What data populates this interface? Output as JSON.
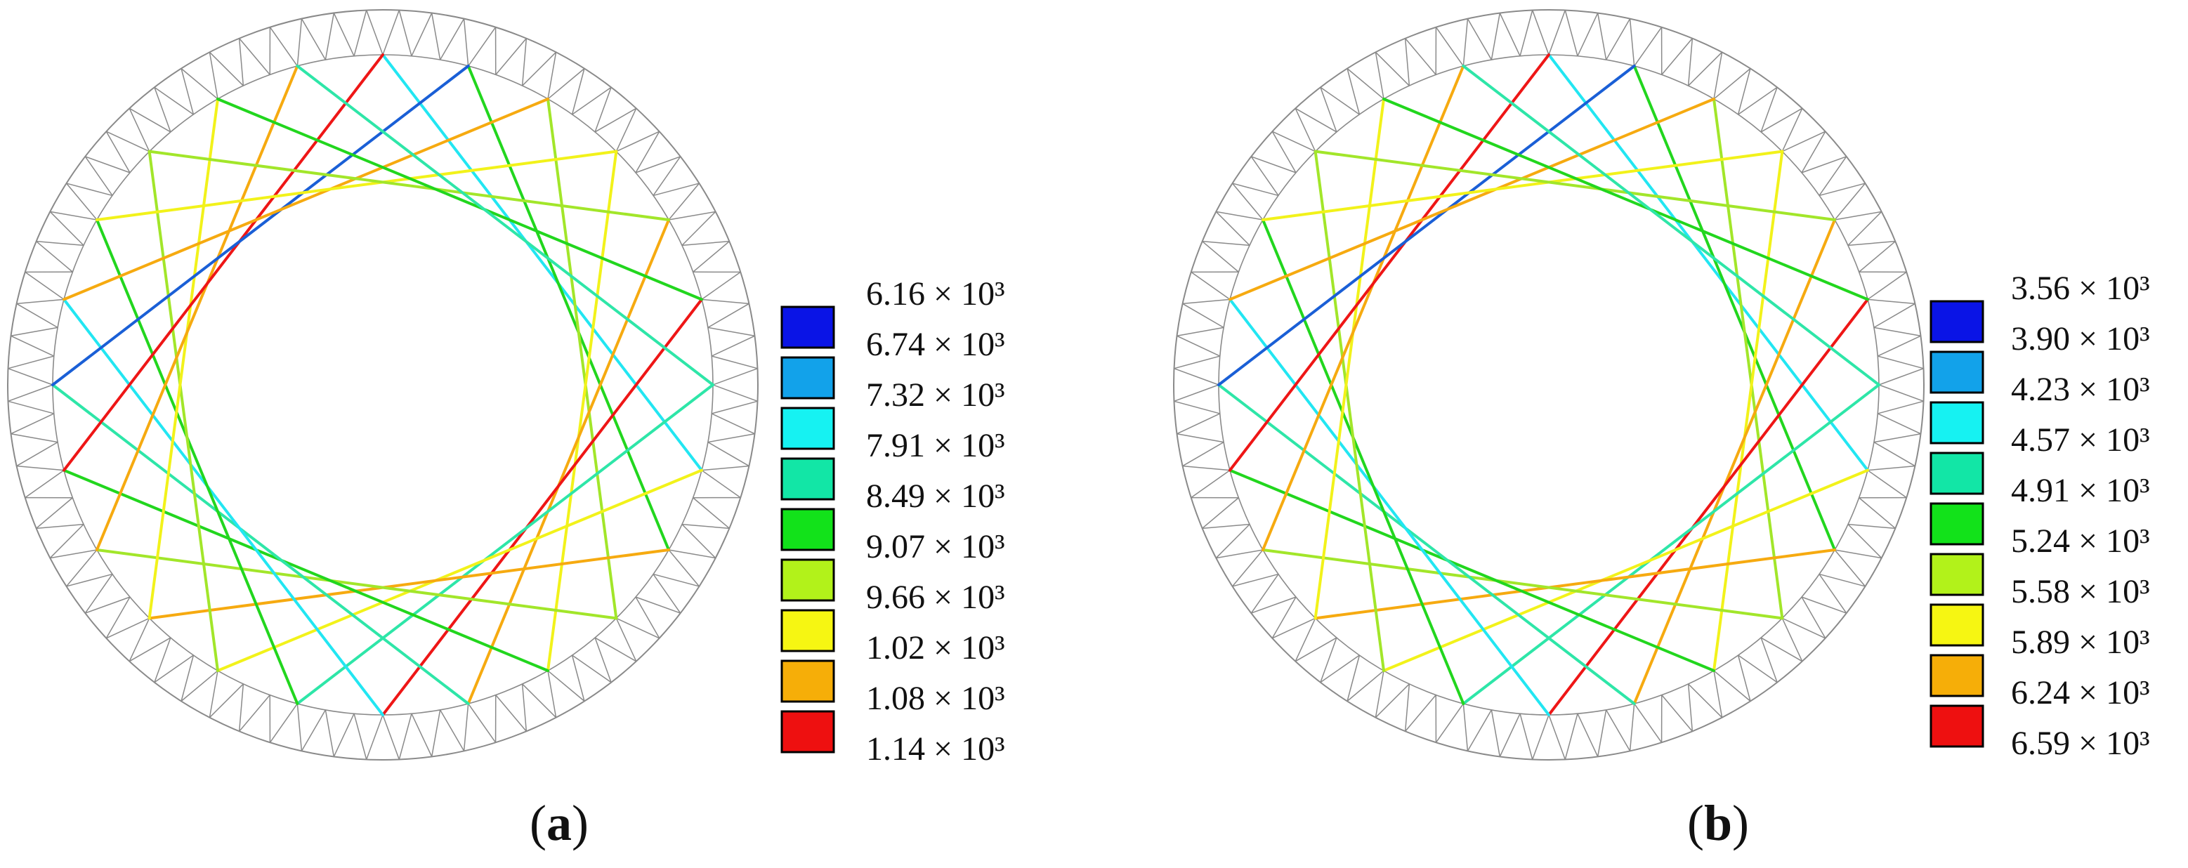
{
  "panels": [
    {
      "id": "a",
      "caption": {
        "open": "(",
        "letter": "a",
        "close": ")"
      },
      "legend": [
        {
          "label": "6.16 × 10³",
          "color": "#0a14e6"
        },
        {
          "label": "6.74 × 10³",
          "color": "#12a2ea"
        },
        {
          "label": "7.32 × 10³",
          "color": "#16f2f2"
        },
        {
          "label": "7.91 × 10³",
          "color": "#12e6a6"
        },
        {
          "label": "8.49 × 10³",
          "color": "#12e21a"
        },
        {
          "label": "9.07 × 10³",
          "color": "#b2f21a"
        },
        {
          "label": "9.66 × 10³",
          "color": "#f6f612"
        },
        {
          "label": "1.02 × 10³",
          "color": "#f6ae08"
        },
        {
          "label": "1.08 × 10³",
          "color": "#ee1010"
        },
        {
          "label": "1.14 × 10³",
          "color": null
        }
      ]
    },
    {
      "id": "b",
      "caption": {
        "open": "(",
        "letter": "b",
        "close": ")"
      },
      "legend": [
        {
          "label": "3.56 × 10³",
          "color": "#0a14e6"
        },
        {
          "label": "3.90 × 10³",
          "color": "#12a2ea"
        },
        {
          "label": "4.23 × 10³",
          "color": "#16f2f2"
        },
        {
          "label": "4.57 × 10³",
          "color": "#12e6a6"
        },
        {
          "label": "4.91 × 10³",
          "color": "#12e21a"
        },
        {
          "label": "5.24 × 10³",
          "color": "#b2f21a"
        },
        {
          "label": "5.58 × 10³",
          "color": "#f6f612"
        },
        {
          "label": "5.89 × 10³",
          "color": "#f6ae08"
        },
        {
          "label": "6.24 × 10³",
          "color": "#ee1010"
        },
        {
          "label": "6.59 × 10³",
          "color": null
        }
      ]
    }
  ],
  "truss_color": "#8a8a8a",
  "cable_colors": {
    "blue": "#1a5fd6",
    "cyan": "#22e6f2",
    "teal": "#2ee6a8",
    "green": "#22d61e",
    "lime": "#a2e62a",
    "yellow": "#f2f21a",
    "orange": "#f6aa10",
    "red": "#ee1616"
  }
}
